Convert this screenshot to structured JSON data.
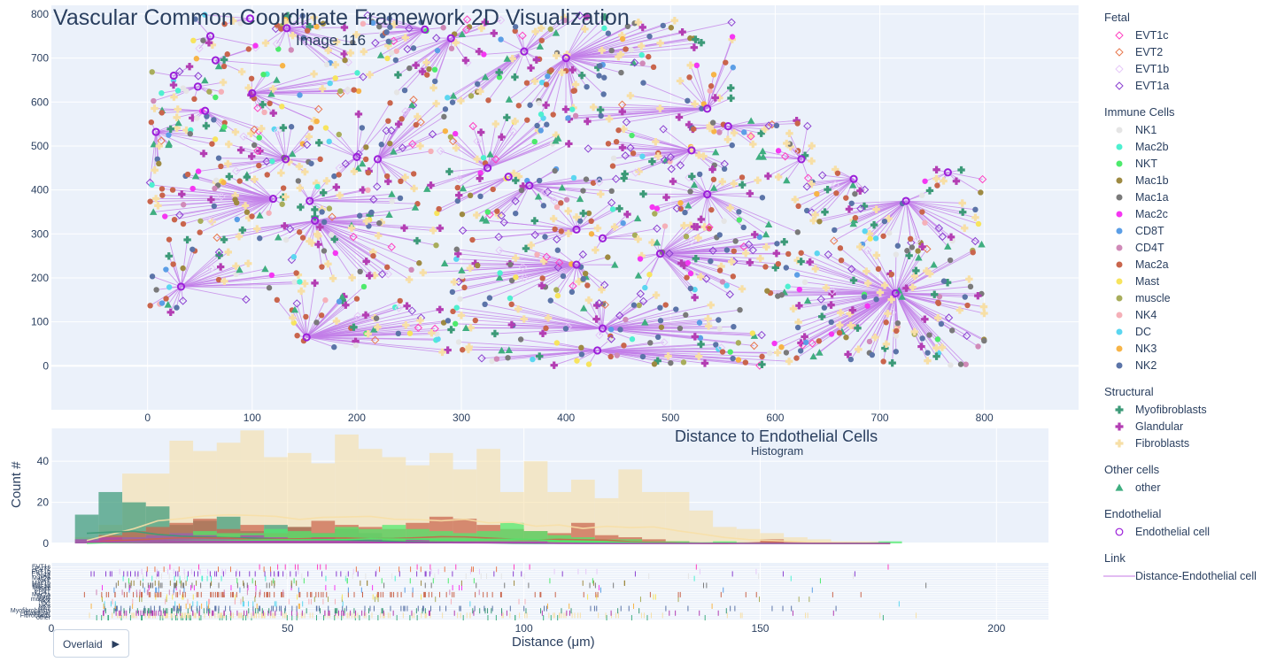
{
  "title": "Vascular Common Coordinate Framework 2D Visualization",
  "subtitle": "Image 116",
  "hist_title": "Distance to Endothelial Cells",
  "hist_subtitle": "Histogram",
  "hist_ylabel": "Count #",
  "xlabel": "Distance (μm)",
  "control": {
    "label": "Overlaid",
    "arrow": "▶"
  },
  "legend": [
    {
      "group": "Fetal",
      "items": [
        {
          "name": "EVT1c",
          "symbol": "diamond-open",
          "color": "#ff3fc1"
        },
        {
          "name": "EVT2",
          "symbol": "diamond-open",
          "color": "#e8794f"
        },
        {
          "name": "EVT1b",
          "symbol": "diamond-open",
          "color": "#e6c8f8"
        },
        {
          "name": "EVT1a",
          "symbol": "diamond-open",
          "color": "#8a3fd0"
        }
      ]
    },
    {
      "group": "Immune Cells",
      "items": [
        {
          "name": "NK1",
          "symbol": "circle",
          "color": "#e5e5e5"
        },
        {
          "name": "Mac2b",
          "symbol": "circle",
          "color": "#4ef0d0"
        },
        {
          "name": "NKT",
          "symbol": "circle",
          "color": "#4dea6c"
        },
        {
          "name": "Mac1b",
          "symbol": "circle",
          "color": "#9e8a42"
        },
        {
          "name": "Mac1a",
          "symbol": "circle",
          "color": "#7a7a7a"
        },
        {
          "name": "Mac2c",
          "symbol": "circle",
          "color": "#f536f2"
        },
        {
          "name": "CD8T",
          "symbol": "circle",
          "color": "#5b9ee6"
        },
        {
          "name": "CD4T",
          "symbol": "circle",
          "color": "#d08ab8"
        },
        {
          "name": "Mac2a",
          "symbol": "circle",
          "color": "#c9654c"
        },
        {
          "name": "Mast",
          "symbol": "circle",
          "color": "#f7e45e"
        },
        {
          "name": "muscle",
          "symbol": "circle",
          "color": "#a8ad5b"
        },
        {
          "name": "NK4",
          "symbol": "circle",
          "color": "#f5b0b8"
        },
        {
          "name": "DC",
          "symbol": "circle",
          "color": "#5bd6f0"
        },
        {
          "name": "NK3",
          "symbol": "circle",
          "color": "#f7b447"
        },
        {
          "name": "NK2",
          "symbol": "circle",
          "color": "#5b74a8"
        }
      ]
    },
    {
      "group": "Structural",
      "items": [
        {
          "name": "Myofibroblasts",
          "symbol": "cross",
          "color": "#3c9a78"
        },
        {
          "name": "Glandular",
          "symbol": "cross",
          "color": "#b33eb3"
        },
        {
          "name": "Fibroblasts",
          "symbol": "cross",
          "color": "#f7dfa6"
        }
      ]
    },
    {
      "group": "Other cells",
      "items": [
        {
          "name": "other",
          "symbol": "triangle",
          "color": "#3fae80"
        }
      ]
    },
    {
      "group": "Endothelial",
      "items": [
        {
          "name": "Endothelial cell",
          "symbol": "circle-open",
          "color": "#9b1fd9"
        }
      ]
    },
    {
      "group": "Link",
      "items": [
        {
          "name": "Distance-Endothelial cell",
          "symbol": "line",
          "color": "#d9a6ee"
        }
      ]
    }
  ],
  "chart_data": [
    {
      "type": "scatter",
      "title": "Vascular Common Coordinate Framework 2D Visualization",
      "subtitle": "Image 116",
      "x_ticks": [
        0,
        100,
        200,
        300,
        400,
        500,
        600,
        700,
        800
      ],
      "y_ticks": [
        0,
        100,
        200,
        300,
        400,
        500,
        600,
        700,
        800
      ],
      "xlim": [
        -92,
        890
      ],
      "ylim": [
        -100,
        820
      ],
      "grid": true,
      "endothelial_cells": [
        [
          98,
          790
        ],
        [
          60,
          750
        ],
        [
          65,
          695
        ],
        [
          133,
          768
        ],
        [
          265,
          765
        ],
        [
          290,
          745
        ],
        [
          360,
          715
        ],
        [
          400,
          700
        ],
        [
          25,
          660
        ],
        [
          48,
          635
        ],
        [
          100,
          620
        ],
        [
          55,
          580
        ],
        [
          8,
          532
        ],
        [
          132,
          470
        ],
        [
          200,
          475
        ],
        [
          220,
          470
        ],
        [
          325,
          450
        ],
        [
          345,
          430
        ],
        [
          365,
          410
        ],
        [
          520,
          490
        ],
        [
          535,
          585
        ],
        [
          555,
          545
        ],
        [
          625,
          470
        ],
        [
          675,
          425
        ],
        [
          535,
          390
        ],
        [
          725,
          375
        ],
        [
          765,
          440
        ],
        [
          120,
          380
        ],
        [
          155,
          375
        ],
        [
          160,
          330
        ],
        [
          32,
          180
        ],
        [
          152,
          65
        ],
        [
          410,
          310
        ],
        [
          435,
          290
        ],
        [
          490,
          255
        ],
        [
          410,
          230
        ],
        [
          435,
          85
        ],
        [
          430,
          35
        ],
        [
          715,
          165
        ]
      ],
      "cell_types": [
        "EVT1c",
        "EVT2",
        "EVT1b",
        "EVT1a",
        "NK1",
        "Mac2b",
        "NKT",
        "Mac1b",
        "Mac1a",
        "Mac2c",
        "CD8T",
        "CD4T",
        "Mac2a",
        "Mast",
        "muscle",
        "NK4",
        "DC",
        "NK3",
        "NK2",
        "Myofibroblasts",
        "Glandular",
        "Fibroblasts",
        "other"
      ]
    },
    {
      "type": "histogram",
      "title": "Distance to Endothelial Cells",
      "subtitle": "Histogram",
      "xlabel": "Distance (μm)",
      "ylabel": "Count #",
      "barmode": "overlay",
      "bin_width": 5,
      "xlim": [
        0,
        211
      ],
      "ylim": [
        0,
        56
      ],
      "x_ticks": [
        0,
        50,
        100,
        150,
        200
      ],
      "y_ticks": [
        0,
        20,
        40
      ],
      "bin_starts": [
        5,
        10,
        15,
        20,
        25,
        30,
        35,
        40,
        45,
        50,
        55,
        60,
        65,
        70,
        75,
        80,
        85,
        90,
        95,
        100,
        105,
        110,
        115,
        120,
        125,
        130,
        135,
        140,
        145,
        150,
        155,
        160,
        165,
        170,
        175
      ],
      "series": [
        {
          "name": "Fibroblasts",
          "values": [
            3,
            9,
            34,
            34,
            50,
            45,
            49,
            55,
            42,
            44,
            39,
            53,
            46,
            42,
            38,
            44,
            36,
            46,
            25,
            40,
            25,
            31,
            22,
            36,
            25,
            25,
            16,
            8,
            7,
            5,
            3,
            2,
            1,
            1,
            0
          ]
        },
        {
          "name": "Myofibroblasts",
          "values": [
            14,
            25,
            20,
            18,
            9,
            11,
            13,
            6,
            9,
            8,
            5,
            7,
            5,
            3,
            2,
            2,
            1,
            1,
            0,
            0,
            0,
            0,
            0,
            0,
            0,
            0,
            0,
            0,
            0,
            0,
            0,
            0,
            0,
            0,
            0
          ]
        },
        {
          "name": "Mac2a",
          "values": [
            0,
            4,
            6,
            8,
            10,
            12,
            7,
            9,
            5,
            8,
            11,
            9,
            8,
            7,
            10,
            13,
            12,
            9,
            7,
            6,
            5,
            10,
            4,
            3,
            2,
            1,
            0,
            0,
            0,
            2,
            0,
            0,
            0,
            0,
            0
          ]
        },
        {
          "name": "NKT",
          "values": [
            0,
            1,
            3,
            4,
            5,
            6,
            5,
            5,
            7,
            6,
            5,
            8,
            7,
            9,
            7,
            6,
            5,
            6,
            10,
            6,
            4,
            3,
            2,
            2,
            1,
            1,
            0,
            1,
            0,
            0,
            0,
            0,
            0,
            0,
            1
          ]
        },
        {
          "name": "Glandular",
          "values": [
            2,
            3,
            3,
            4,
            5,
            4,
            3,
            4,
            3,
            2,
            3,
            2,
            2,
            1,
            2,
            1,
            1,
            1,
            1,
            1,
            0,
            0,
            0,
            0,
            0,
            0,
            0,
            0,
            0,
            0,
            0,
            0,
            0,
            0,
            0
          ]
        }
      ]
    }
  ]
}
